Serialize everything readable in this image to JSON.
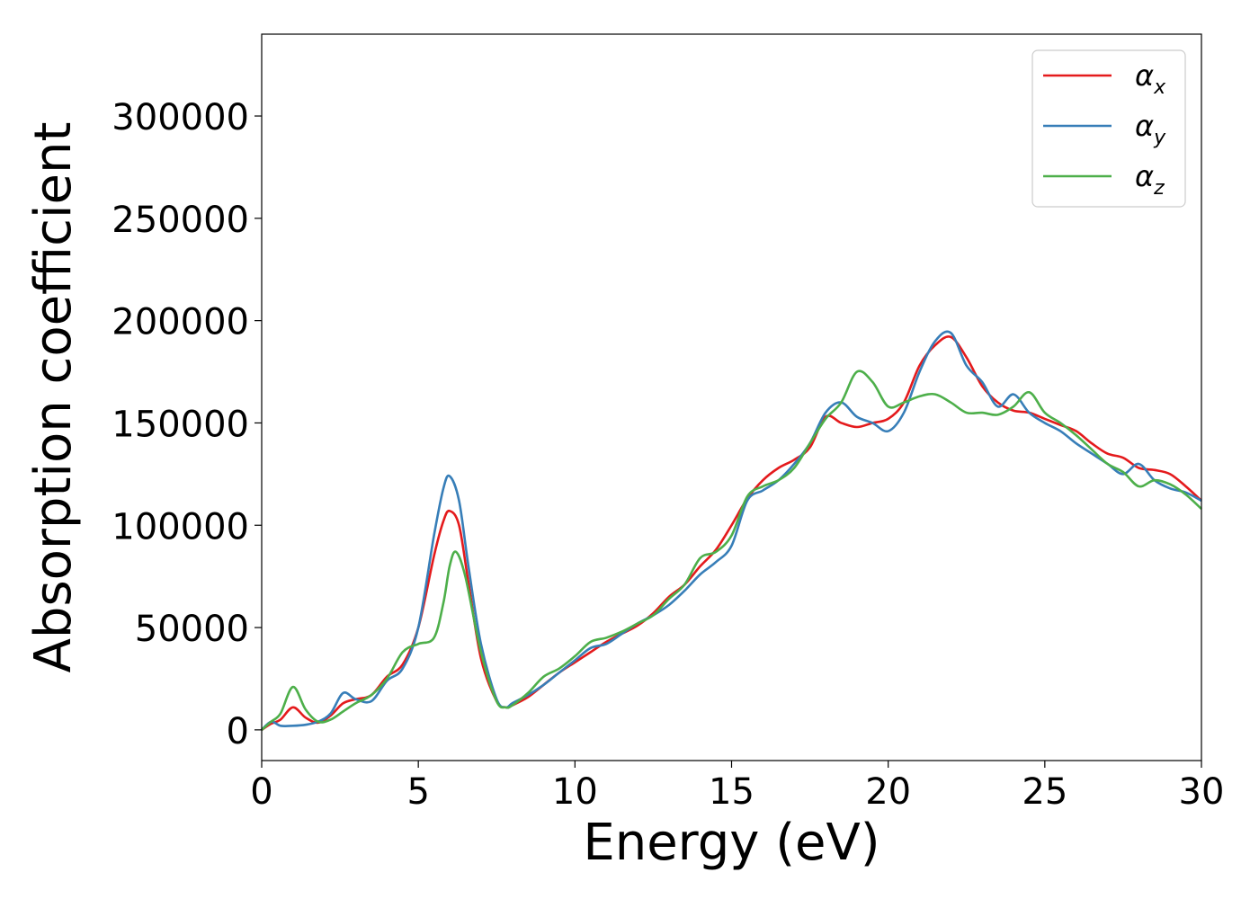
{
  "chart_data": {
    "type": "line",
    "title": "",
    "xlabel": "Energy (eV)",
    "ylabel": "Absorption coefficient",
    "xlim": [
      0,
      30
    ],
    "ylim": [
      -15000,
      340000
    ],
    "xticks": [
      0,
      5,
      10,
      15,
      20,
      25,
      30
    ],
    "xtick_labels": [
      "0",
      "5",
      "10",
      "15",
      "20",
      "25",
      "30"
    ],
    "yticks": [
      0,
      50000,
      100000,
      150000,
      200000,
      250000,
      300000
    ],
    "ytick_labels": [
      "0",
      "50000",
      "100000",
      "150000",
      "200000",
      "250000",
      "300000"
    ],
    "grid": false,
    "legend_position": "top-right",
    "series": [
      {
        "name": "αx",
        "symbol": "α",
        "subscript": "x",
        "color": "#e41a1c",
        "x": [
          0,
          0.3,
          0.6,
          1.0,
          1.4,
          1.8,
          2.2,
          2.6,
          3.0,
          3.5,
          4.0,
          4.5,
          5.0,
          5.5,
          5.8,
          6.0,
          6.3,
          6.6,
          7.0,
          7.5,
          7.8,
          8.0,
          8.5,
          9.0,
          9.5,
          10.0,
          10.5,
          11.0,
          11.5,
          12.0,
          12.5,
          13.0,
          13.5,
          14.0,
          14.5,
          15.0,
          15.5,
          16.0,
          16.5,
          17.0,
          17.5,
          18.0,
          18.5,
          19.0,
          19.5,
          20.0,
          20.5,
          21.0,
          21.5,
          22.0,
          22.5,
          23.0,
          23.5,
          24.0,
          24.5,
          25.0,
          25.5,
          26.0,
          26.5,
          27.0,
          27.5,
          28.0,
          28.5,
          29.0,
          29.5,
          30.0
        ],
        "y": [
          0,
          3000,
          5000,
          11000,
          6000,
          3500,
          7000,
          13000,
          15000,
          17000,
          26000,
          32000,
          50000,
          85000,
          102000,
          107000,
          100000,
          72000,
          35000,
          14000,
          11000,
          12000,
          16000,
          22000,
          28000,
          33000,
          38000,
          43000,
          47000,
          51000,
          57000,
          65000,
          71000,
          80000,
          88000,
          100000,
          113000,
          122000,
          128000,
          132000,
          138000,
          153000,
          150000,
          148000,
          150000,
          152000,
          160000,
          178000,
          188000,
          192000,
          182000,
          168000,
          160000,
          156000,
          155000,
          152000,
          149000,
          146000,
          140000,
          135000,
          133000,
          128000,
          127000,
          125000,
          119000,
          112000
        ]
      },
      {
        "name": "αy",
        "symbol": "α",
        "subscript": "y",
        "color": "#377eb8",
        "x": [
          0,
          0.3,
          0.6,
          1.0,
          1.4,
          1.8,
          2.2,
          2.6,
          3.0,
          3.5,
          4.0,
          4.5,
          5.0,
          5.5,
          5.8,
          6.0,
          6.3,
          6.6,
          7.0,
          7.5,
          7.8,
          8.0,
          8.5,
          9.0,
          9.5,
          10.0,
          10.5,
          11.0,
          11.5,
          12.0,
          12.5,
          13.0,
          13.5,
          14.0,
          14.5,
          15.0,
          15.5,
          16.0,
          16.5,
          17.0,
          17.5,
          18.0,
          18.5,
          19.0,
          19.5,
          20.0,
          20.5,
          21.0,
          21.5,
          22.0,
          22.5,
          23.0,
          23.5,
          24.0,
          24.5,
          25.0,
          25.5,
          26.0,
          26.5,
          27.0,
          27.5,
          28.0,
          28.5,
          29.0,
          29.5,
          30.0
        ],
        "y": [
          0,
          4000,
          2000,
          2000,
          2500,
          4000,
          8000,
          18000,
          15000,
          14000,
          24000,
          30000,
          50000,
          95000,
          118000,
          124000,
          112000,
          80000,
          42000,
          15000,
          11000,
          13000,
          17000,
          22000,
          28000,
          34000,
          40000,
          42000,
          47000,
          52000,
          56000,
          61000,
          68000,
          76000,
          82000,
          90000,
          112000,
          117000,
          122000,
          130000,
          140000,
          155000,
          160000,
          153000,
          150000,
          146000,
          155000,
          175000,
          190000,
          194000,
          178000,
          170000,
          158000,
          164000,
          155000,
          150000,
          146000,
          140000,
          135000,
          130000,
          125000,
          130000,
          122000,
          118000,
          116000,
          112000
        ]
      },
      {
        "name": "αz",
        "symbol": "α",
        "subscript": "z",
        "color": "#4daf4a",
        "x": [
          0,
          0.3,
          0.6,
          1.0,
          1.4,
          1.8,
          2.2,
          2.6,
          3.0,
          3.5,
          4.0,
          4.5,
          5.0,
          5.5,
          5.8,
          6.0,
          6.2,
          6.5,
          7.0,
          7.5,
          7.8,
          8.0,
          8.5,
          9.0,
          9.5,
          10.0,
          10.5,
          11.0,
          11.5,
          12.0,
          12.5,
          13.0,
          13.5,
          14.0,
          14.5,
          15.0,
          15.5,
          16.0,
          16.5,
          17.0,
          17.5,
          18.0,
          18.5,
          19.0,
          19.5,
          20.0,
          20.5,
          21.0,
          21.5,
          22.0,
          22.5,
          23.0,
          23.5,
          24.0,
          24.5,
          25.0,
          25.5,
          26.0,
          26.5,
          27.0,
          27.5,
          28.0,
          28.5,
          29.0,
          29.5,
          30.0
        ],
        "y": [
          0,
          4000,
          8000,
          21000,
          10000,
          4000,
          5000,
          9000,
          13000,
          17000,
          25000,
          38000,
          42000,
          45000,
          62000,
          80000,
          87000,
          75000,
          38000,
          14000,
          11000,
          12000,
          18000,
          26000,
          30000,
          36000,
          43000,
          45000,
          48000,
          52000,
          56000,
          64000,
          71000,
          84000,
          87000,
          95000,
          114000,
          119000,
          122000,
          128000,
          140000,
          152000,
          160000,
          175000,
          170000,
          158000,
          160000,
          163000,
          164000,
          160000,
          155000,
          155000,
          154000,
          158000,
          165000,
          155000,
          150000,
          144000,
          137000,
          130000,
          126000,
          119000,
          122000,
          120000,
          115000,
          108000
        ]
      }
    ]
  }
}
